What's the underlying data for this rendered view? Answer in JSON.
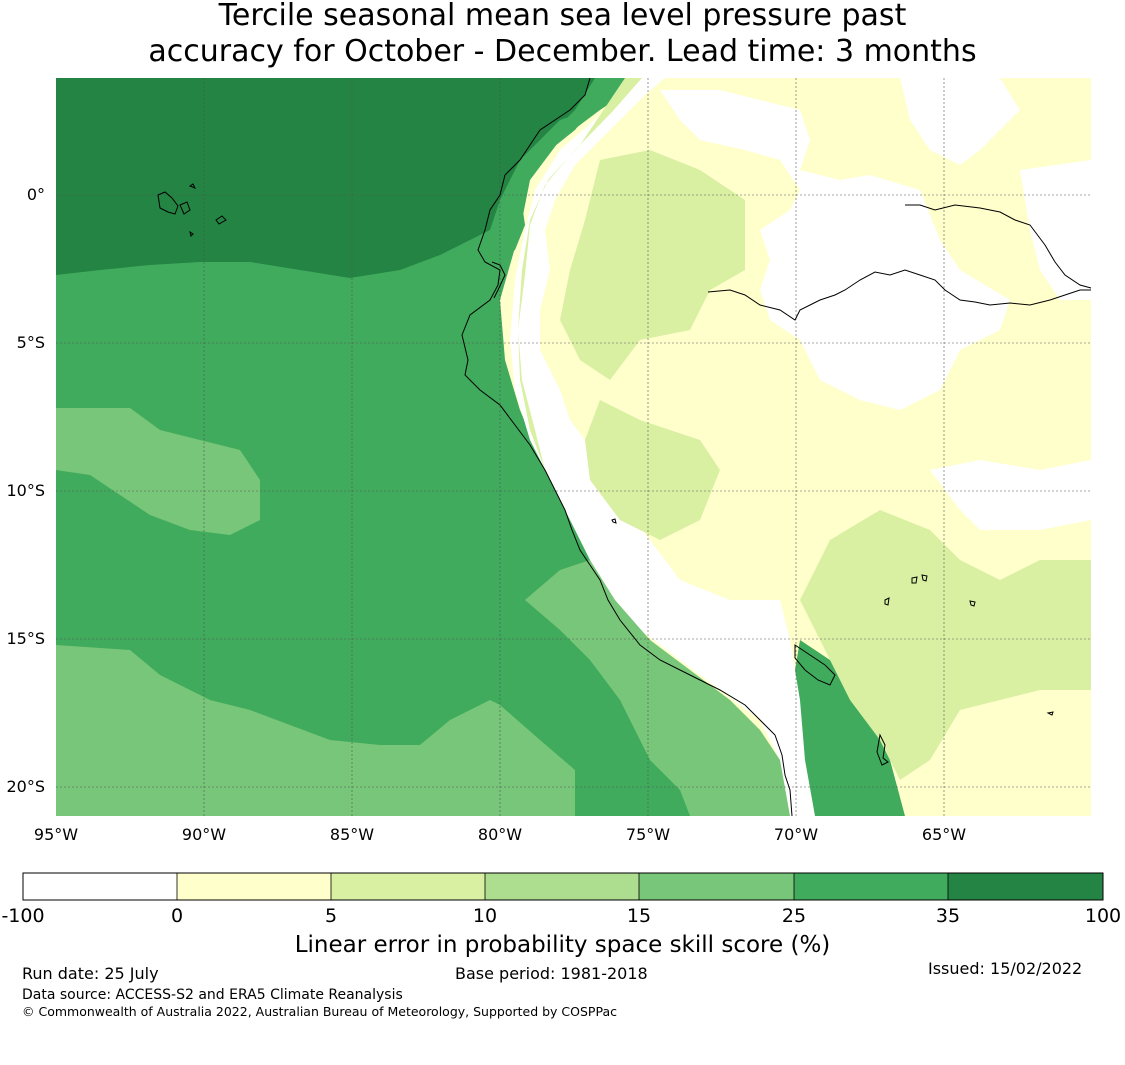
{
  "title": {
    "line1": "Tercile seasonal mean sea level pressure past",
    "line2": "accuracy for October - December. Lead time: 3 months"
  },
  "map": {
    "lon_range": [
      -95,
      -60
    ],
    "lat_range": [
      -21,
      4
    ],
    "x_ticks": [
      {
        "lon": -95,
        "label": "95°W"
      },
      {
        "lon": -90,
        "label": "90°W"
      },
      {
        "lon": -85,
        "label": "85°W"
      },
      {
        "lon": -80,
        "label": "80°W"
      },
      {
        "lon": -75,
        "label": "75°W"
      },
      {
        "lon": -70,
        "label": "70°W"
      },
      {
        "lon": -65,
        "label": "65°W"
      }
    ],
    "y_ticks": [
      {
        "lat": 0,
        "label": "0°"
      },
      {
        "lat": -5,
        "label": "5°S"
      },
      {
        "lat": -10,
        "label": "10°S"
      },
      {
        "lat": -15,
        "label": "15°S"
      },
      {
        "lat": -20,
        "label": "20°S"
      }
    ],
    "region_note": "Eastern tropical Pacific and western South America (Ecuador, Peru)"
  },
  "colorbar": {
    "title": "Linear error in probability space skill score (%)",
    "boundaries": [
      "-100",
      "0",
      "5",
      "10",
      "15",
      "25",
      "35",
      "100"
    ],
    "colors": [
      "#ffffff",
      "#ffffcc",
      "#d9f0a3",
      "#addd8e",
      "#78c679",
      "#41ab5d",
      "#238443"
    ]
  },
  "footer": {
    "run_date": "Run date: 25 July",
    "base_period": "Base period: 1981-2018",
    "issued": "Issued: 15/02/2022",
    "data_source": "Data source: ACCESS-S2 and ERA5 Climate Reanalysis",
    "copyright": "© Commonwealth of Australia 2022, Australian Bureau of Meteorology, Supported by COSPPac"
  }
}
